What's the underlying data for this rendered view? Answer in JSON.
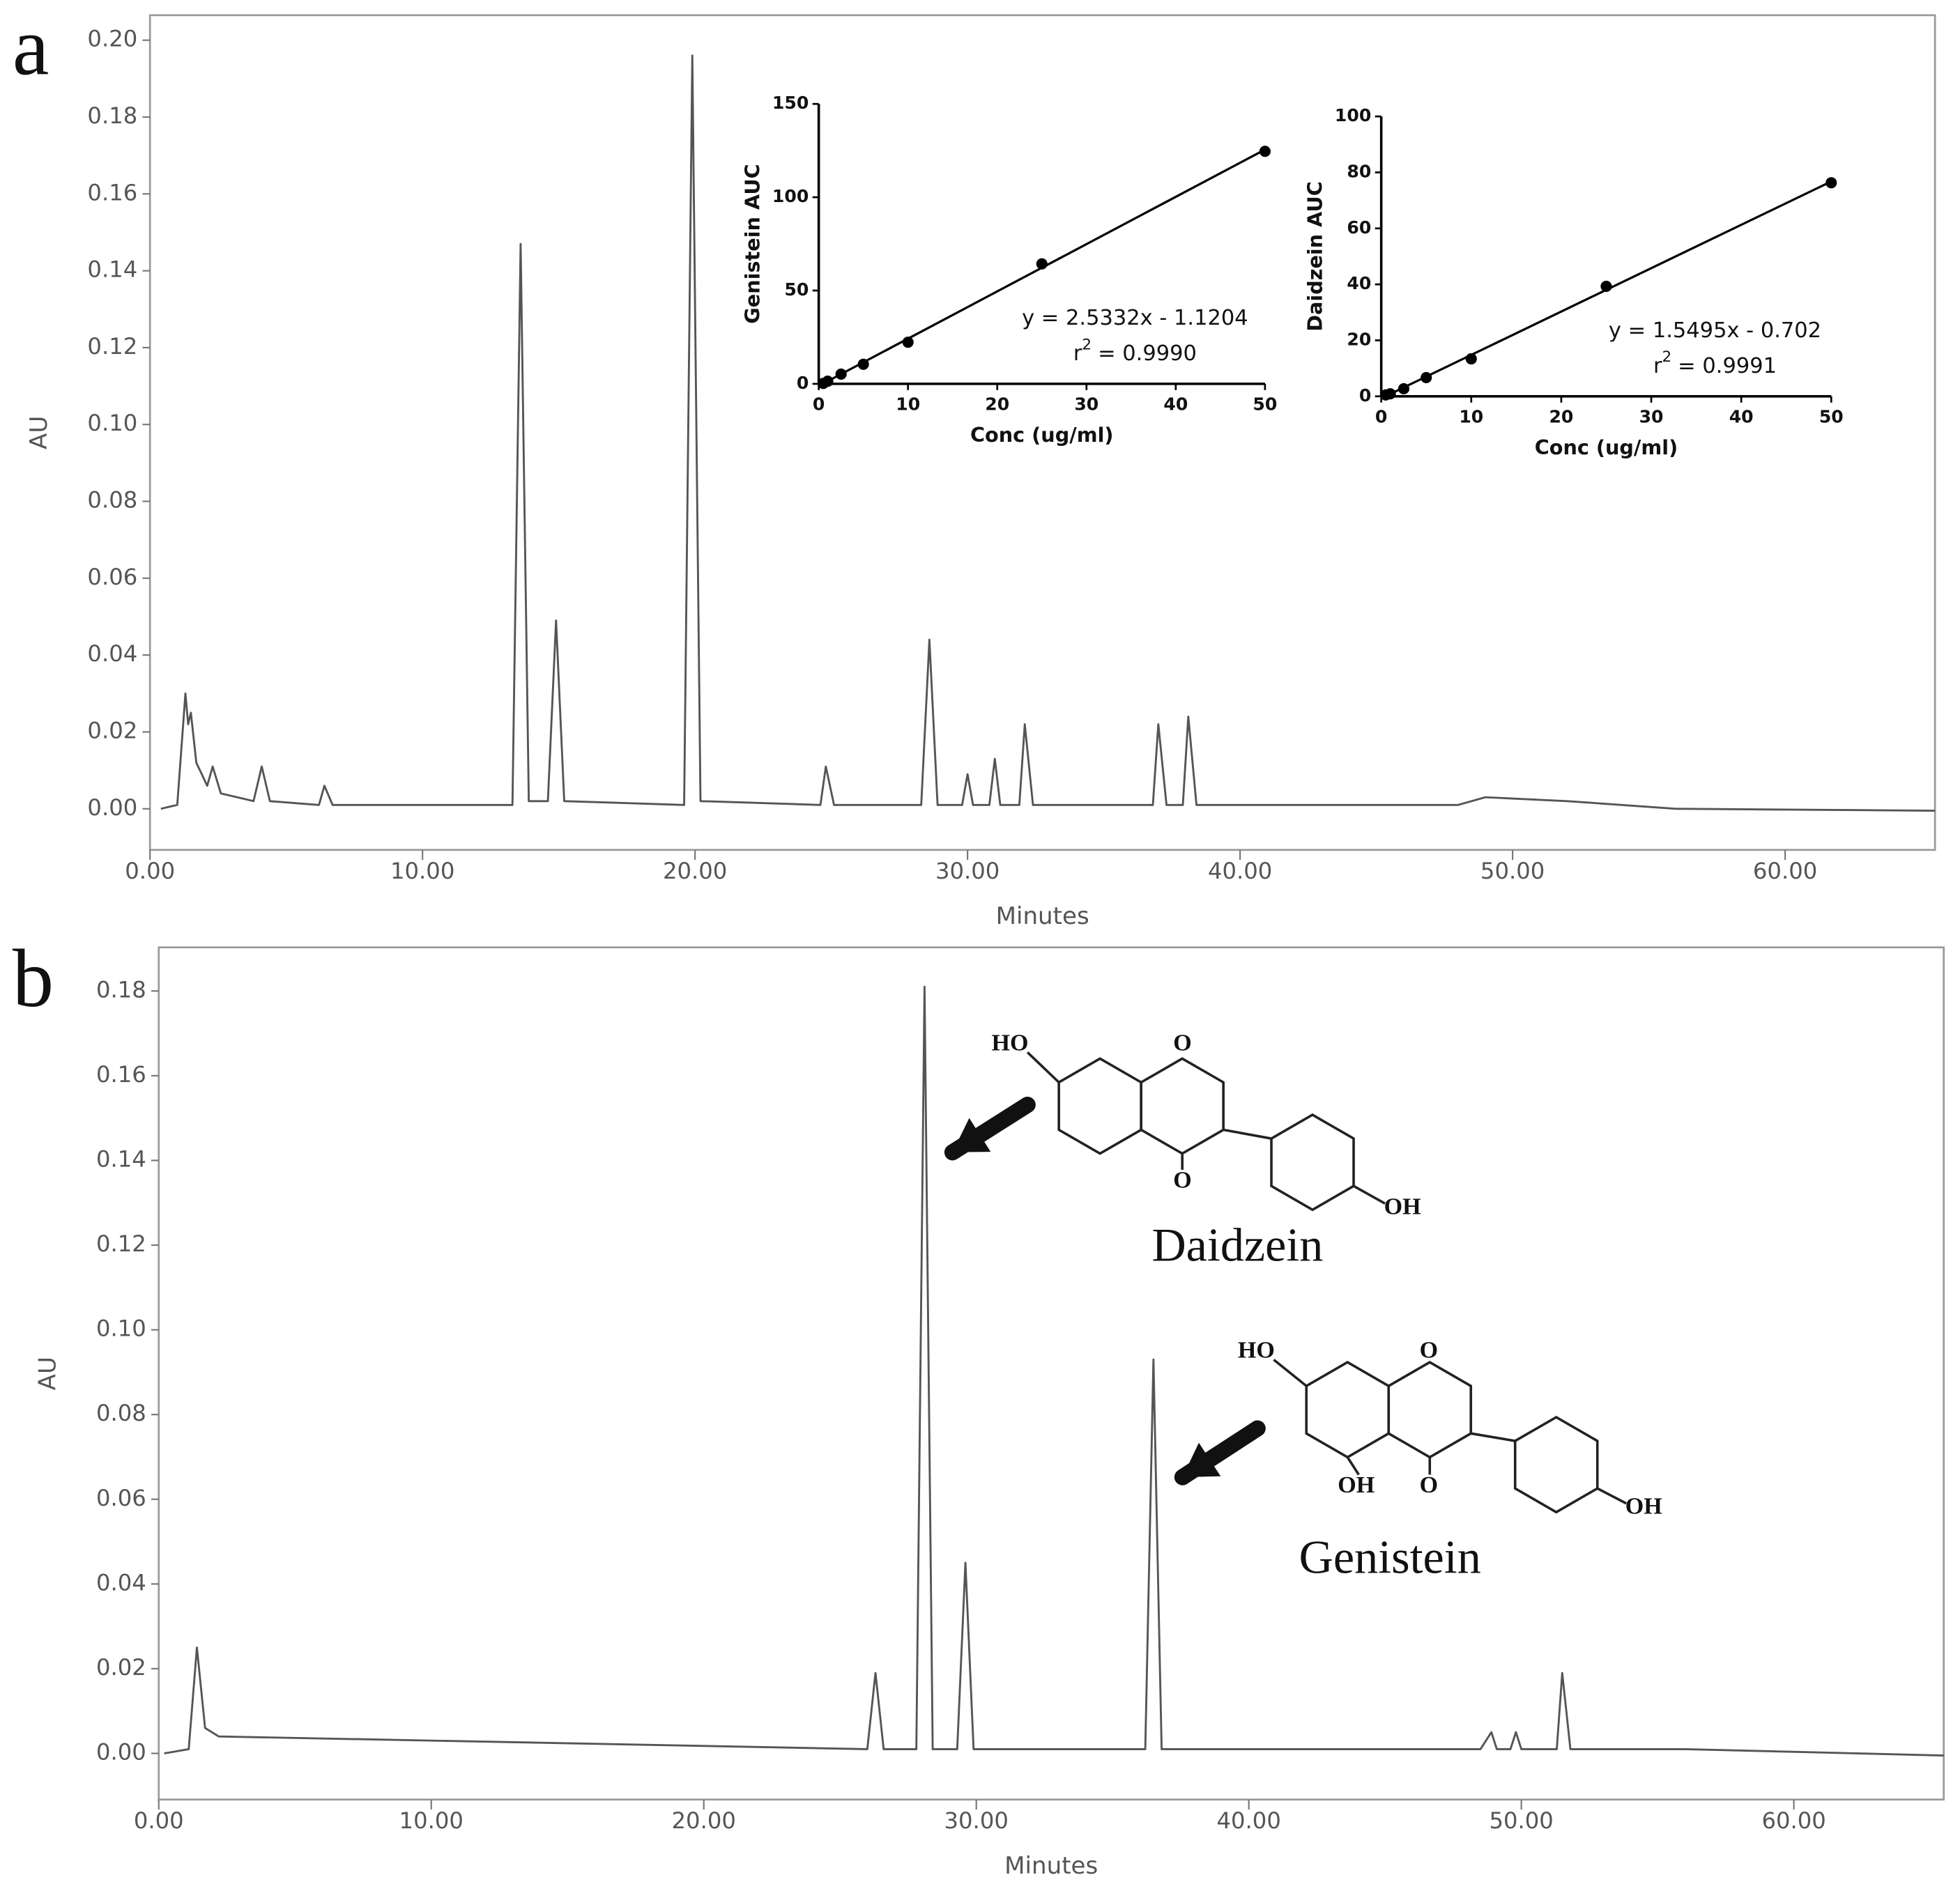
{
  "chart_data": [
    {
      "type": "line",
      "panel": "a",
      "xlabel": "Minutes",
      "ylabel": "AU",
      "color": "#555555",
      "xlim": [
        0,
        65.5
      ],
      "ylim": [
        -0.0107,
        0.2065
      ],
      "xticks": [
        {
          "value": 0,
          "label": "0.00"
        },
        {
          "value": 10,
          "label": "10.00"
        },
        {
          "value": 20,
          "label": "20.00"
        },
        {
          "value": 30,
          "label": "30.00"
        },
        {
          "value": 40,
          "label": "40.00"
        },
        {
          "value": 50,
          "label": "50.00"
        },
        {
          "value": 60,
          "label": "60.00"
        }
      ],
      "yticks": [
        {
          "value": 0,
          "label": "0.00"
        },
        {
          "value": 0.02,
          "label": "0.02"
        },
        {
          "value": 0.04,
          "label": "0.04"
        },
        {
          "value": 0.06,
          "label": "0.06"
        },
        {
          "value": 0.08,
          "label": "0.08"
        },
        {
          "value": 0.1,
          "label": "0.10"
        },
        {
          "value": 0.12,
          "label": "0.12"
        },
        {
          "value": 0.14,
          "label": "0.14"
        },
        {
          "value": 0.16,
          "label": "0.16"
        },
        {
          "value": 0.18,
          "label": "0.18"
        },
        {
          "value": 0.2,
          "label": "0.20"
        }
      ],
      "x": [
        0.4,
        1.0,
        1.3,
        1.4,
        1.5,
        1.7,
        2.1,
        2.3,
        2.6,
        3.8,
        4.1,
        4.4,
        6.2,
        6.4,
        6.7,
        13.3,
        13.6,
        13.9,
        14.6,
        14.9,
        15.2,
        19.6,
        19.9,
        20.2,
        24.6,
        24.8,
        25.1,
        28.3,
        28.6,
        28.9,
        29.8,
        30.0,
        30.2,
        30.8,
        31.0,
        31.2,
        31.9,
        32.1,
        32.4,
        36.8,
        37.0,
        37.3,
        37.9,
        38.1,
        38.4,
        48.0,
        49.0,
        52.0,
        56.0,
        65.5
      ],
      "values": [
        0,
        0.001,
        0.03,
        0.022,
        0.025,
        0.012,
        0.006,
        0.011,
        0.004,
        0.002,
        0.011,
        0.002,
        0.001,
        0.006,
        0.001,
        0.001,
        0.147,
        0.002,
        0.002,
        0.049,
        0.002,
        0.001,
        0.196,
        0.002,
        0.001,
        0.011,
        0.001,
        0.001,
        0.044,
        0.001,
        0.001,
        0.009,
        0.001,
        0.001,
        0.013,
        0.001,
        0.001,
        0.022,
        0.001,
        0.001,
        0.022,
        0.001,
        0.001,
        0.024,
        0.001,
        0.001,
        0.003,
        0.002,
        0,
        -0.0005
      ]
    },
    {
      "type": "scatter",
      "xlabel": "Conc (ug/ml)",
      "ylabel": "Genistein AUC",
      "color": "#000000",
      "xlim": [
        0,
        50
      ],
      "ylim": [
        0,
        150
      ],
      "xticks": [
        0,
        10,
        20,
        30,
        40,
        50
      ],
      "yticks": [
        0,
        50,
        100,
        150
      ],
      "x": [
        0.5,
        1,
        2.5,
        5,
        10,
        25,
        50
      ],
      "values": [
        0.2,
        1.4,
        5.2,
        10.5,
        22.3,
        64.3,
        124.6
      ],
      "fit": {
        "x": [
          0,
          50
        ],
        "values": [
          -1.1204,
          125.5396
        ]
      },
      "equation": "y = 2.5332x - 1.1204",
      "r2_base": "r",
      "r2_exponent": "2",
      "r2_rest": "= 0.9990"
    },
    {
      "type": "scatter",
      "xlabel": "Conc (ug/ml)",
      "ylabel": "Daidzein AUC",
      "color": "#000000",
      "xlim": [
        0,
        50
      ],
      "ylim": [
        0,
        100
      ],
      "xticks": [
        0,
        10,
        20,
        30,
        40,
        50
      ],
      "yticks": [
        0,
        20,
        40,
        60,
        80,
        100
      ],
      "x": [
        0.5,
        1,
        2.5,
        5,
        10,
        25,
        50
      ],
      "values": [
        0.5,
        0.9,
        2.7,
        6.7,
        13.4,
        39.3,
        76.3
      ],
      "fit": {
        "x": [
          0,
          50
        ],
        "values": [
          -0.702,
          76.773
        ]
      },
      "equation": "y = 1.5495x - 0.702",
      "r2_base": "r",
      "r2_exponent": "2",
      "r2_rest": "= 0.9991"
    },
    {
      "type": "line",
      "panel": "b",
      "xlabel": "Minutes",
      "ylabel": "AU",
      "color": "#555555",
      "xlim": [
        0,
        65.5
      ],
      "ylim": [
        -0.0109,
        0.1903
      ],
      "xticks": [
        {
          "value": 0,
          "label": "0.00"
        },
        {
          "value": 10,
          "label": "10.00"
        },
        {
          "value": 20,
          "label": "20.00"
        },
        {
          "value": 30,
          "label": "30.00"
        },
        {
          "value": 40,
          "label": "40.00"
        },
        {
          "value": 50,
          "label": "50.00"
        },
        {
          "value": 60,
          "label": "60.00"
        }
      ],
      "yticks": [
        {
          "value": 0,
          "label": "0.00"
        },
        {
          "value": 0.02,
          "label": "0.02"
        },
        {
          "value": 0.04,
          "label": "0.04"
        },
        {
          "value": 0.06,
          "label": "0.06"
        },
        {
          "value": 0.08,
          "label": "0.08"
        },
        {
          "value": 0.1,
          "label": "0.10"
        },
        {
          "value": 0.12,
          "label": "0.12"
        },
        {
          "value": 0.14,
          "label": "0.14"
        },
        {
          "value": 0.16,
          "label": "0.16"
        },
        {
          "value": 0.18,
          "label": "0.18"
        }
      ],
      "x": [
        0.2,
        1.1,
        1.4,
        1.7,
        2.2,
        26.0,
        26.3,
        26.6,
        27.8,
        28.1,
        28.4,
        29.3,
        29.6,
        29.9,
        36.2,
        36.5,
        36.8,
        48.5,
        48.9,
        49.1,
        49.6,
        49.8,
        50.0,
        51.3,
        51.5,
        51.8,
        56.0,
        65.5
      ],
      "values": [
        0,
        0.001,
        0.025,
        0.006,
        0.004,
        0.001,
        0.019,
        0.001,
        0.001,
        0.181,
        0.001,
        0.001,
        0.045,
        0.001,
        0.001,
        0.093,
        0.001,
        0.001,
        0.005,
        0.001,
        0.001,
        0.005,
        0.001,
        0.001,
        0.019,
        0.001,
        0.001,
        -0.0005
      ],
      "compounds": [
        {
          "name": "Daidzein",
          "atoms": [
            "HO",
            "O",
            "O",
            "OH"
          ]
        },
        {
          "name": "Genistein",
          "atoms": [
            "HO",
            "O",
            "OH",
            "O",
            "OH"
          ]
        }
      ]
    }
  ]
}
